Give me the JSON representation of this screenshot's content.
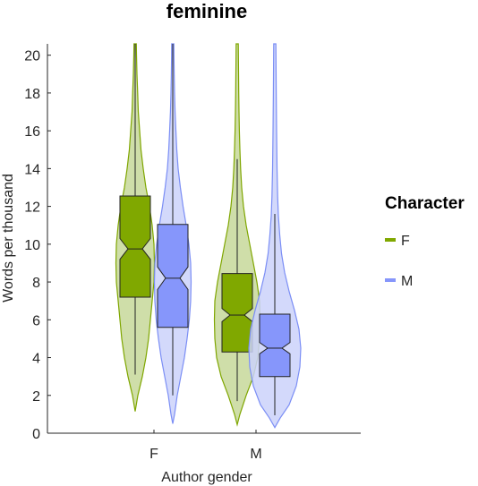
{
  "chart_data": {
    "type": "violin-boxplot",
    "title": "feminine",
    "xlabel": "Author gender",
    "ylabel": "Words per thousand",
    "ylim": [
      0,
      20.6
    ],
    "yticks": [
      0,
      2,
      4,
      6,
      8,
      10,
      12,
      14,
      16,
      18,
      20
    ],
    "categories": [
      "F",
      "M"
    ],
    "legend": {
      "title": "Character",
      "placement": "right"
    },
    "series": [
      {
        "name": "F",
        "color": "#7fa600",
        "fill_violin": "#c7d89a",
        "fill_box": "#80a800",
        "groups": [
          {
            "category": "F",
            "q1": 7.2,
            "median": 9.75,
            "q3": 12.55,
            "notch_low": 9.2,
            "notch_high": 10.3,
            "whisker_low": 3.1,
            "whisker_high": 20.6,
            "violin_min": 1.15,
            "violin_max": 20.6
          },
          {
            "category": "M",
            "q1": 4.3,
            "median": 6.25,
            "q3": 8.45,
            "notch_low": 5.9,
            "notch_high": 6.6,
            "whisker_low": 1.7,
            "whisker_high": 14.5,
            "violin_min": 0.45,
            "violin_max": 20.6
          }
        ]
      },
      {
        "name": "M",
        "color": "#7b8ef5",
        "fill_violin": "#cbd2fa",
        "fill_box": "#8696fb",
        "groups": [
          {
            "category": "F",
            "q1": 5.6,
            "median": 8.2,
            "q3": 11.05,
            "notch_low": 7.6,
            "notch_high": 8.8,
            "whisker_low": 2.0,
            "whisker_high": 20.6,
            "violin_min": 0.5,
            "violin_max": 20.6
          },
          {
            "category": "M",
            "q1": 3.0,
            "median": 4.5,
            "q3": 6.3,
            "notch_low": 4.2,
            "notch_high": 4.8,
            "whisker_low": 0.95,
            "whisker_high": 11.6,
            "violin_min": 0.3,
            "violin_max": 20.6
          }
        ]
      }
    ]
  }
}
